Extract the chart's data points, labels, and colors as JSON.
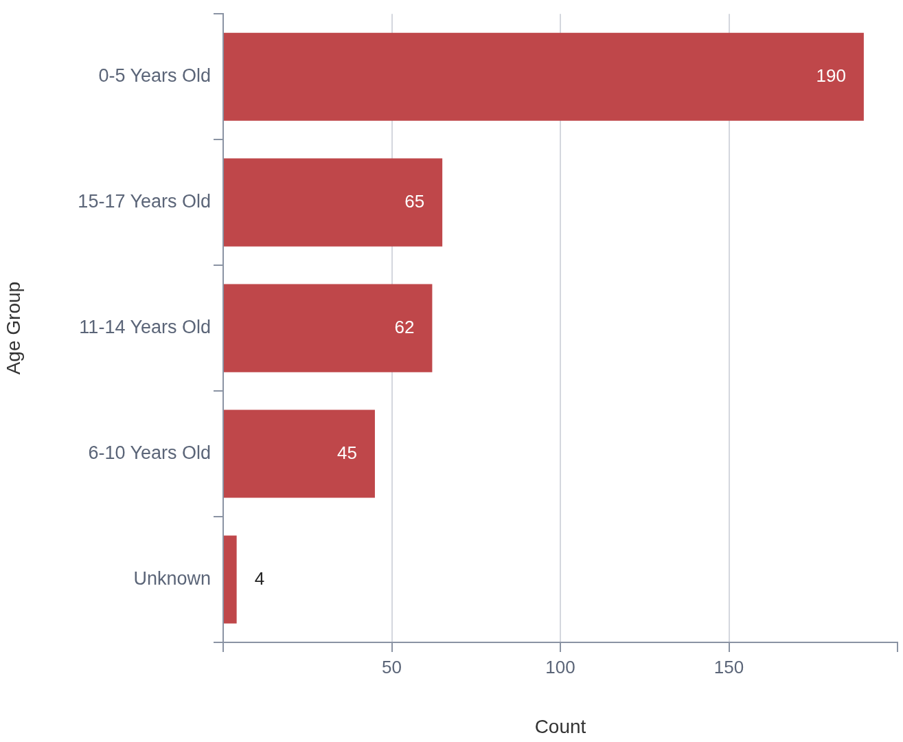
{
  "chart_data": {
    "type": "bar",
    "orientation": "horizontal",
    "xlabel": "Count",
    "ylabel": "Age Group",
    "categories": [
      "0-5 Years Old",
      "15-17 Years Old",
      "11-14 Years Old",
      "6-10 Years Old",
      "Unknown"
    ],
    "values": [
      190,
      65,
      62,
      45,
      4
    ],
    "color": "#bf474a",
    "xlim": [
      0,
      200
    ],
    "xticks": [
      {
        "value": 0,
        "label": null
      },
      50,
      100,
      150,
      {
        "value": 200,
        "label": null
      }
    ],
    "grid": "x",
    "data_labels": true
  }
}
